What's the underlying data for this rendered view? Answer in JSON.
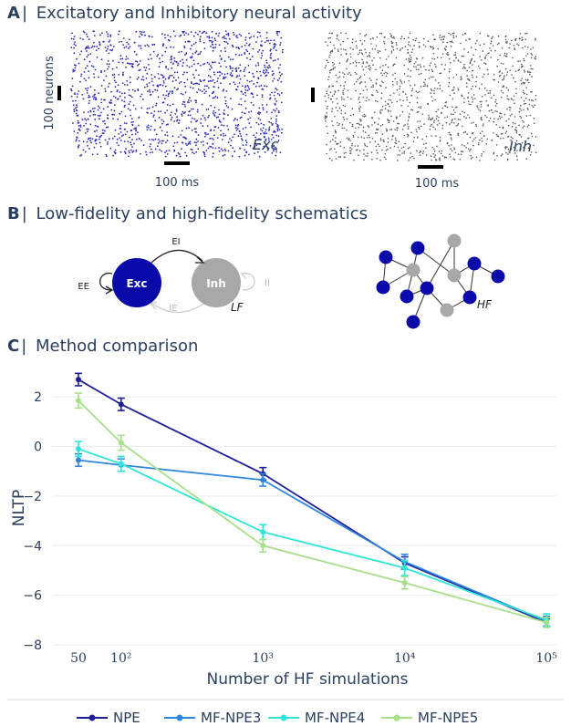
{
  "panel_a": {
    "letter": "A",
    "title": "Excitatory and Inhibitory neural activity",
    "scale_neurons": "100 neurons",
    "scale_time": "100 ms",
    "exc_label": "Exc",
    "inh_label": "Inh",
    "exc_color": "#2a2ab4",
    "inh_color": "#555555"
  },
  "panel_b": {
    "letter": "B",
    "title": "Low-fidelity and high-fidelity schematics",
    "exc_node": "Exc",
    "inh_node": "Inh",
    "ee": "EE",
    "ei": "EI",
    "ie": "IE",
    "ii": "II",
    "lf": "LF",
    "hf": "HF",
    "exc_color": "#0a0aa8",
    "inh_color": "#a8a8a8"
  },
  "panel_c": {
    "letter": "C",
    "title": "Method comparison"
  },
  "chart_data": {
    "type": "line",
    "xscale": "log",
    "xlabel": "Number of HF simulations",
    "ylabel": "NLTP",
    "x": [
      50,
      100,
      1000,
      10000,
      100000
    ],
    "x_tick_labels": [
      "50",
      "10²",
      "10³",
      "10⁴",
      "10⁵"
    ],
    "ylim": [
      -8,
      3
    ],
    "yticks": [
      -8,
      -6,
      -4,
      -2,
      0,
      2
    ],
    "grid": true,
    "legend_position": "bottom",
    "series": [
      {
        "name": "NPE",
        "color": "#1f1f99",
        "values": [
          2.7,
          1.7,
          -1.1,
          -4.7,
          -7.1
        ],
        "errors": [
          0.25,
          0.25,
          0.25,
          0.25,
          0.15
        ]
      },
      {
        "name": "MF-NPE3",
        "color": "#2e86de",
        "values": [
          -0.55,
          -0.75,
          -1.35,
          -4.65,
          -7.05
        ],
        "errors": [
          0.25,
          0.25,
          0.25,
          0.3,
          0.2
        ]
      },
      {
        "name": "MF-NPE4",
        "color": "#2ee6d6",
        "values": [
          -0.1,
          -0.7,
          -3.45,
          -4.9,
          -7.0
        ],
        "errors": [
          0.3,
          0.3,
          0.3,
          0.3,
          0.25
        ]
      },
      {
        "name": "MF-NPE5",
        "color": "#a8e08a",
        "values": [
          1.85,
          0.15,
          -4.0,
          -5.5,
          -7.1
        ],
        "errors": [
          0.3,
          0.3,
          0.25,
          0.25,
          0.2
        ]
      }
    ]
  }
}
